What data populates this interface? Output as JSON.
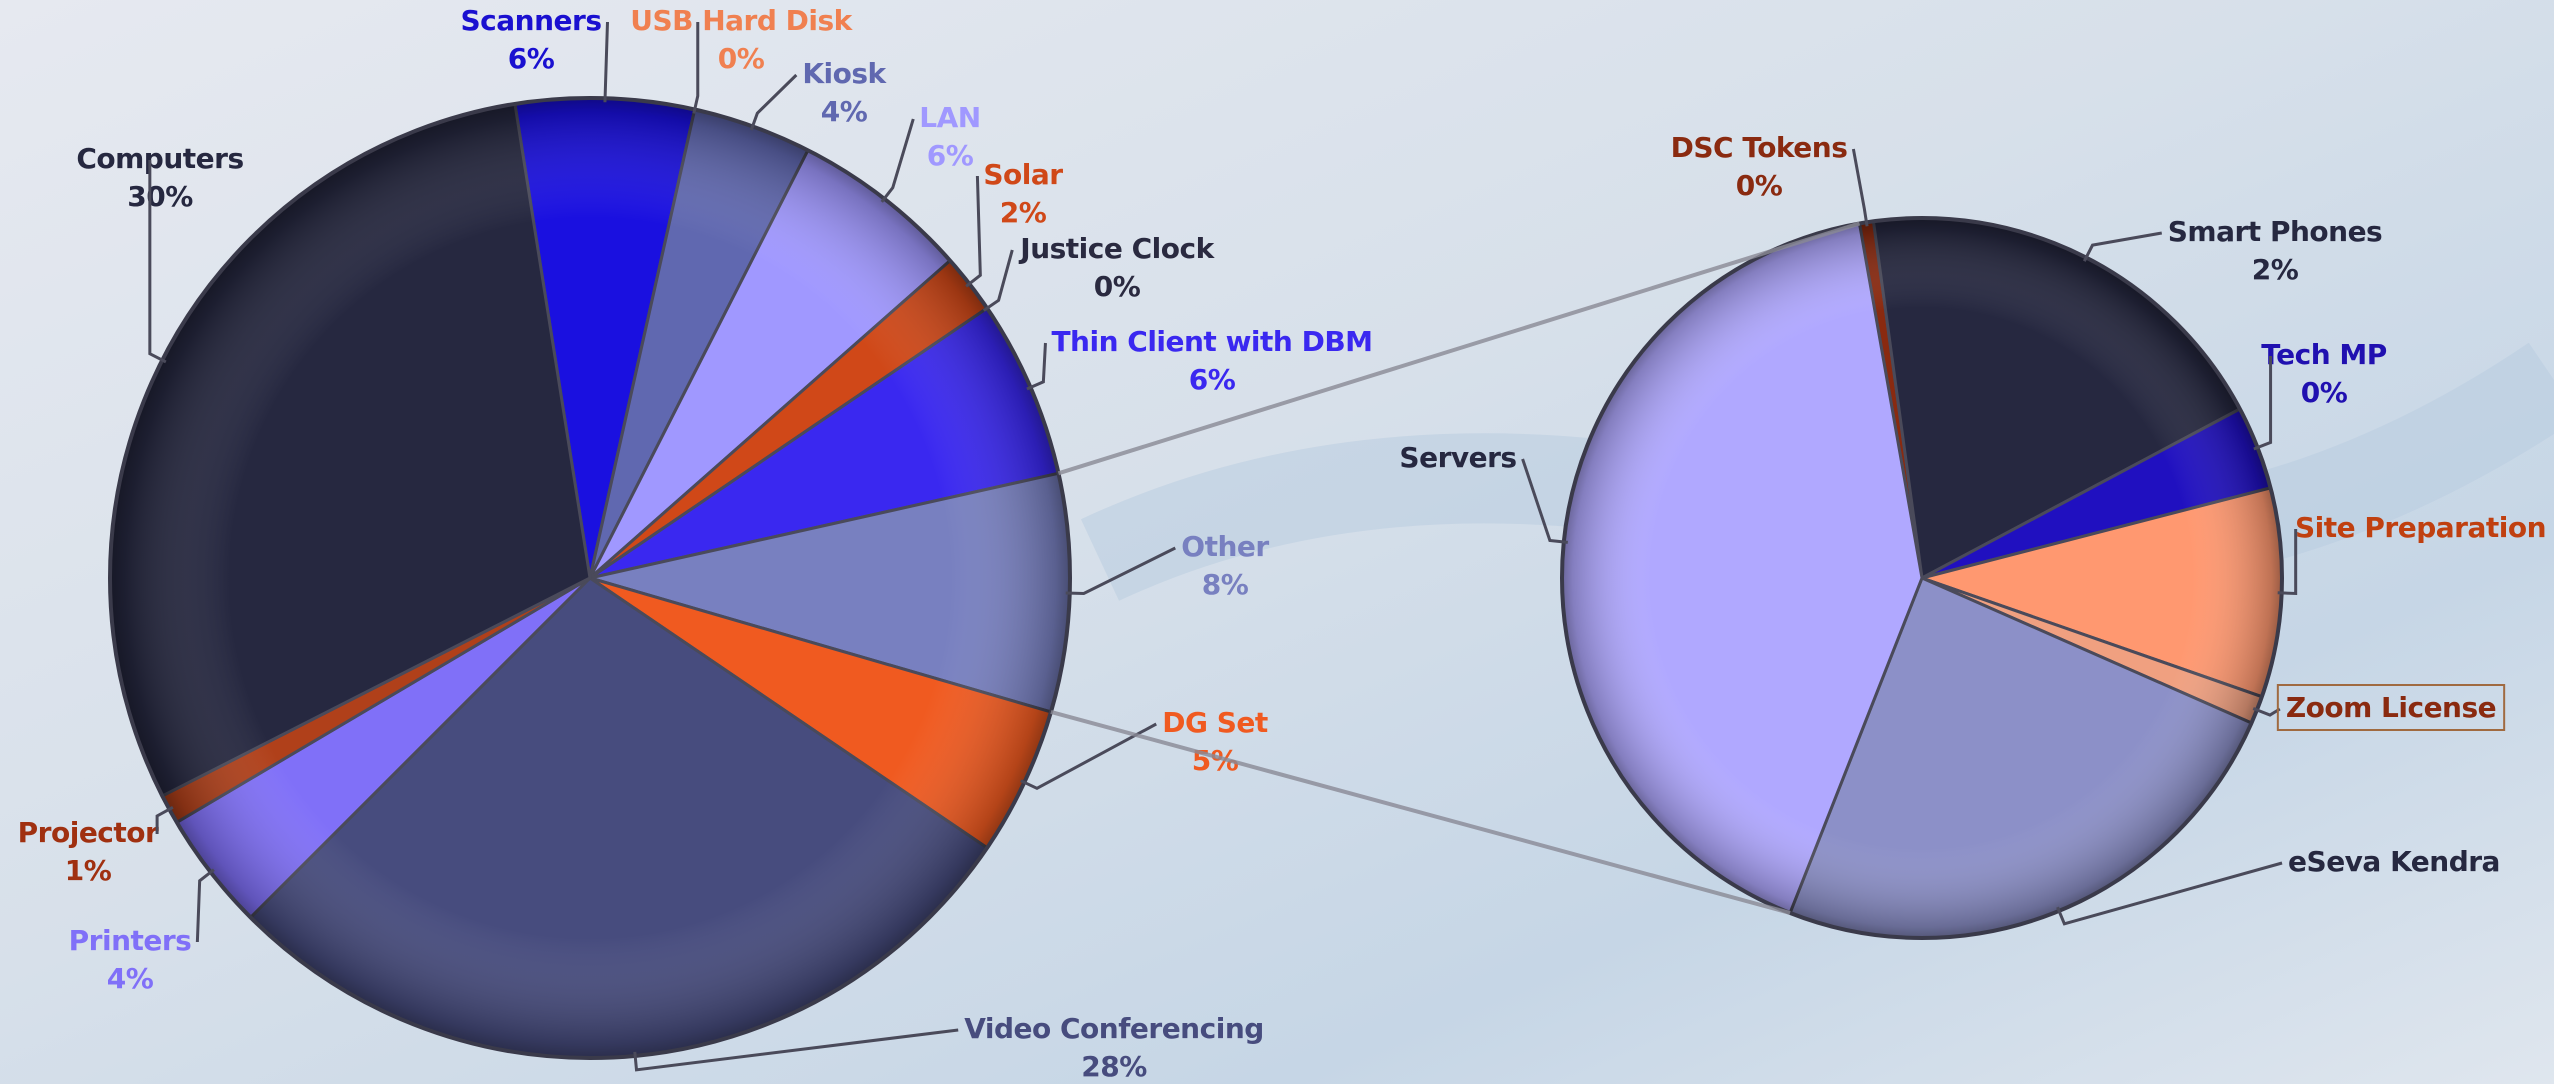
{
  "chart_data": [
    {
      "type": "pie",
      "categories": [
        "Scanners",
        "USB Hard Disk",
        "Kiosk",
        "LAN",
        "Solar",
        "Justice Clock",
        "Thin Client with DBM",
        "Other",
        "DG Set",
        "Video Conferencing",
        "Printers",
        "Projector",
        "Computers"
      ],
      "values": [
        6,
        0,
        4,
        6,
        2,
        0,
        6,
        8,
        5,
        28,
        4,
        1,
        30
      ],
      "value_labels": [
        "6%",
        "0%",
        "4%",
        "6%",
        "2%",
        "0%",
        "6%",
        "8%",
        "5%",
        "28%",
        "4%",
        "1%",
        "30%"
      ],
      "colors": [
        "#1a10e0",
        "#f08050",
        "#6068b0",
        "#a098ff",
        "#d04818",
        "#2a2a40",
        "#3a28f0",
        "#7880c0",
        "#f05a20",
        "#474c7e",
        "#8070f8",
        "#b0401a",
        "#262840"
      ],
      "label_colors": [
        "#1a10d0",
        "#f08050",
        "#6068b0",
        "#a098ff",
        "#d04818",
        "#2a2a40",
        "#3a28f0",
        "#7880c0",
        "#f05a20",
        "#474c7e",
        "#8070f8",
        "#a03010",
        "#262840"
      ]
    },
    {
      "type": "pie",
      "categories": [
        "DSC Tokens",
        "Smart Phones",
        "Tech MP",
        "Site Preparation",
        "Zoom License",
        "eSeva Kendra",
        "Servers"
      ],
      "values": [
        0.05,
        1.55,
        0.3,
        0.75,
        0.1,
        1.95,
        3.3
      ],
      "value_labels": [
        "0%",
        "2%",
        "0%",
        null,
        null,
        null,
        null
      ],
      "colors": [
        "#8a2a10",
        "#262840",
        "#2010c0",
        "#ff9870",
        "#f0a080",
        "#8c90c8",
        "#b0a8ff"
      ],
      "label_colors": [
        "#8a2a10",
        "#262840",
        "#2010b0",
        "#c04010",
        "#8a2a10",
        "#262840",
        "#262840"
      ]
    }
  ]
}
